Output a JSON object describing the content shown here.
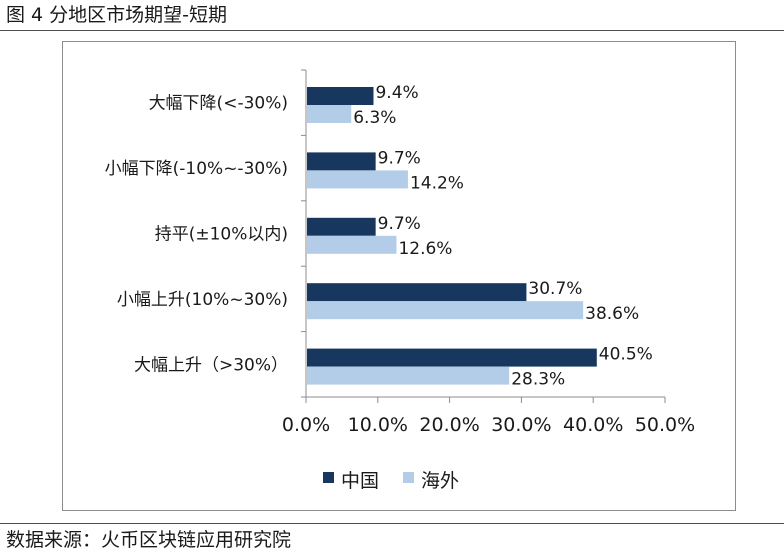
{
  "figure": {
    "title": "图 4 分地区市场期望-短期",
    "source": "数据来源：火币区块链应用研究院"
  },
  "chart_data": {
    "type": "bar",
    "orientation": "horizontal",
    "categories": [
      "大幅下降(<-30%)",
      "小幅下降(-10%~-30%)",
      "持平(±10%以内)",
      "小幅上升(10%~30%)",
      "大幅上升（>30%）"
    ],
    "series": [
      {
        "name": "中国",
        "values": [
          9.4,
          9.7,
          9.7,
          30.7,
          40.5
        ],
        "labels": [
          "9.4%",
          "9.7%",
          "9.7%",
          "30.7%",
          "40.5%"
        ],
        "color": "#17375e"
      },
      {
        "name": "海外",
        "values": [
          6.3,
          14.2,
          12.6,
          38.6,
          28.3
        ],
        "labels": [
          "6.3%",
          "14.2%",
          "12.6%",
          "38.6%",
          "28.3%"
        ],
        "color": "#b3cde9"
      }
    ],
    "xlim": [
      0,
      50
    ],
    "xticks": [
      "0.0%",
      "10.0%",
      "20.0%",
      "30.0%",
      "40.0%",
      "50.0%"
    ],
    "grid": false,
    "legend_position": "bottom"
  }
}
